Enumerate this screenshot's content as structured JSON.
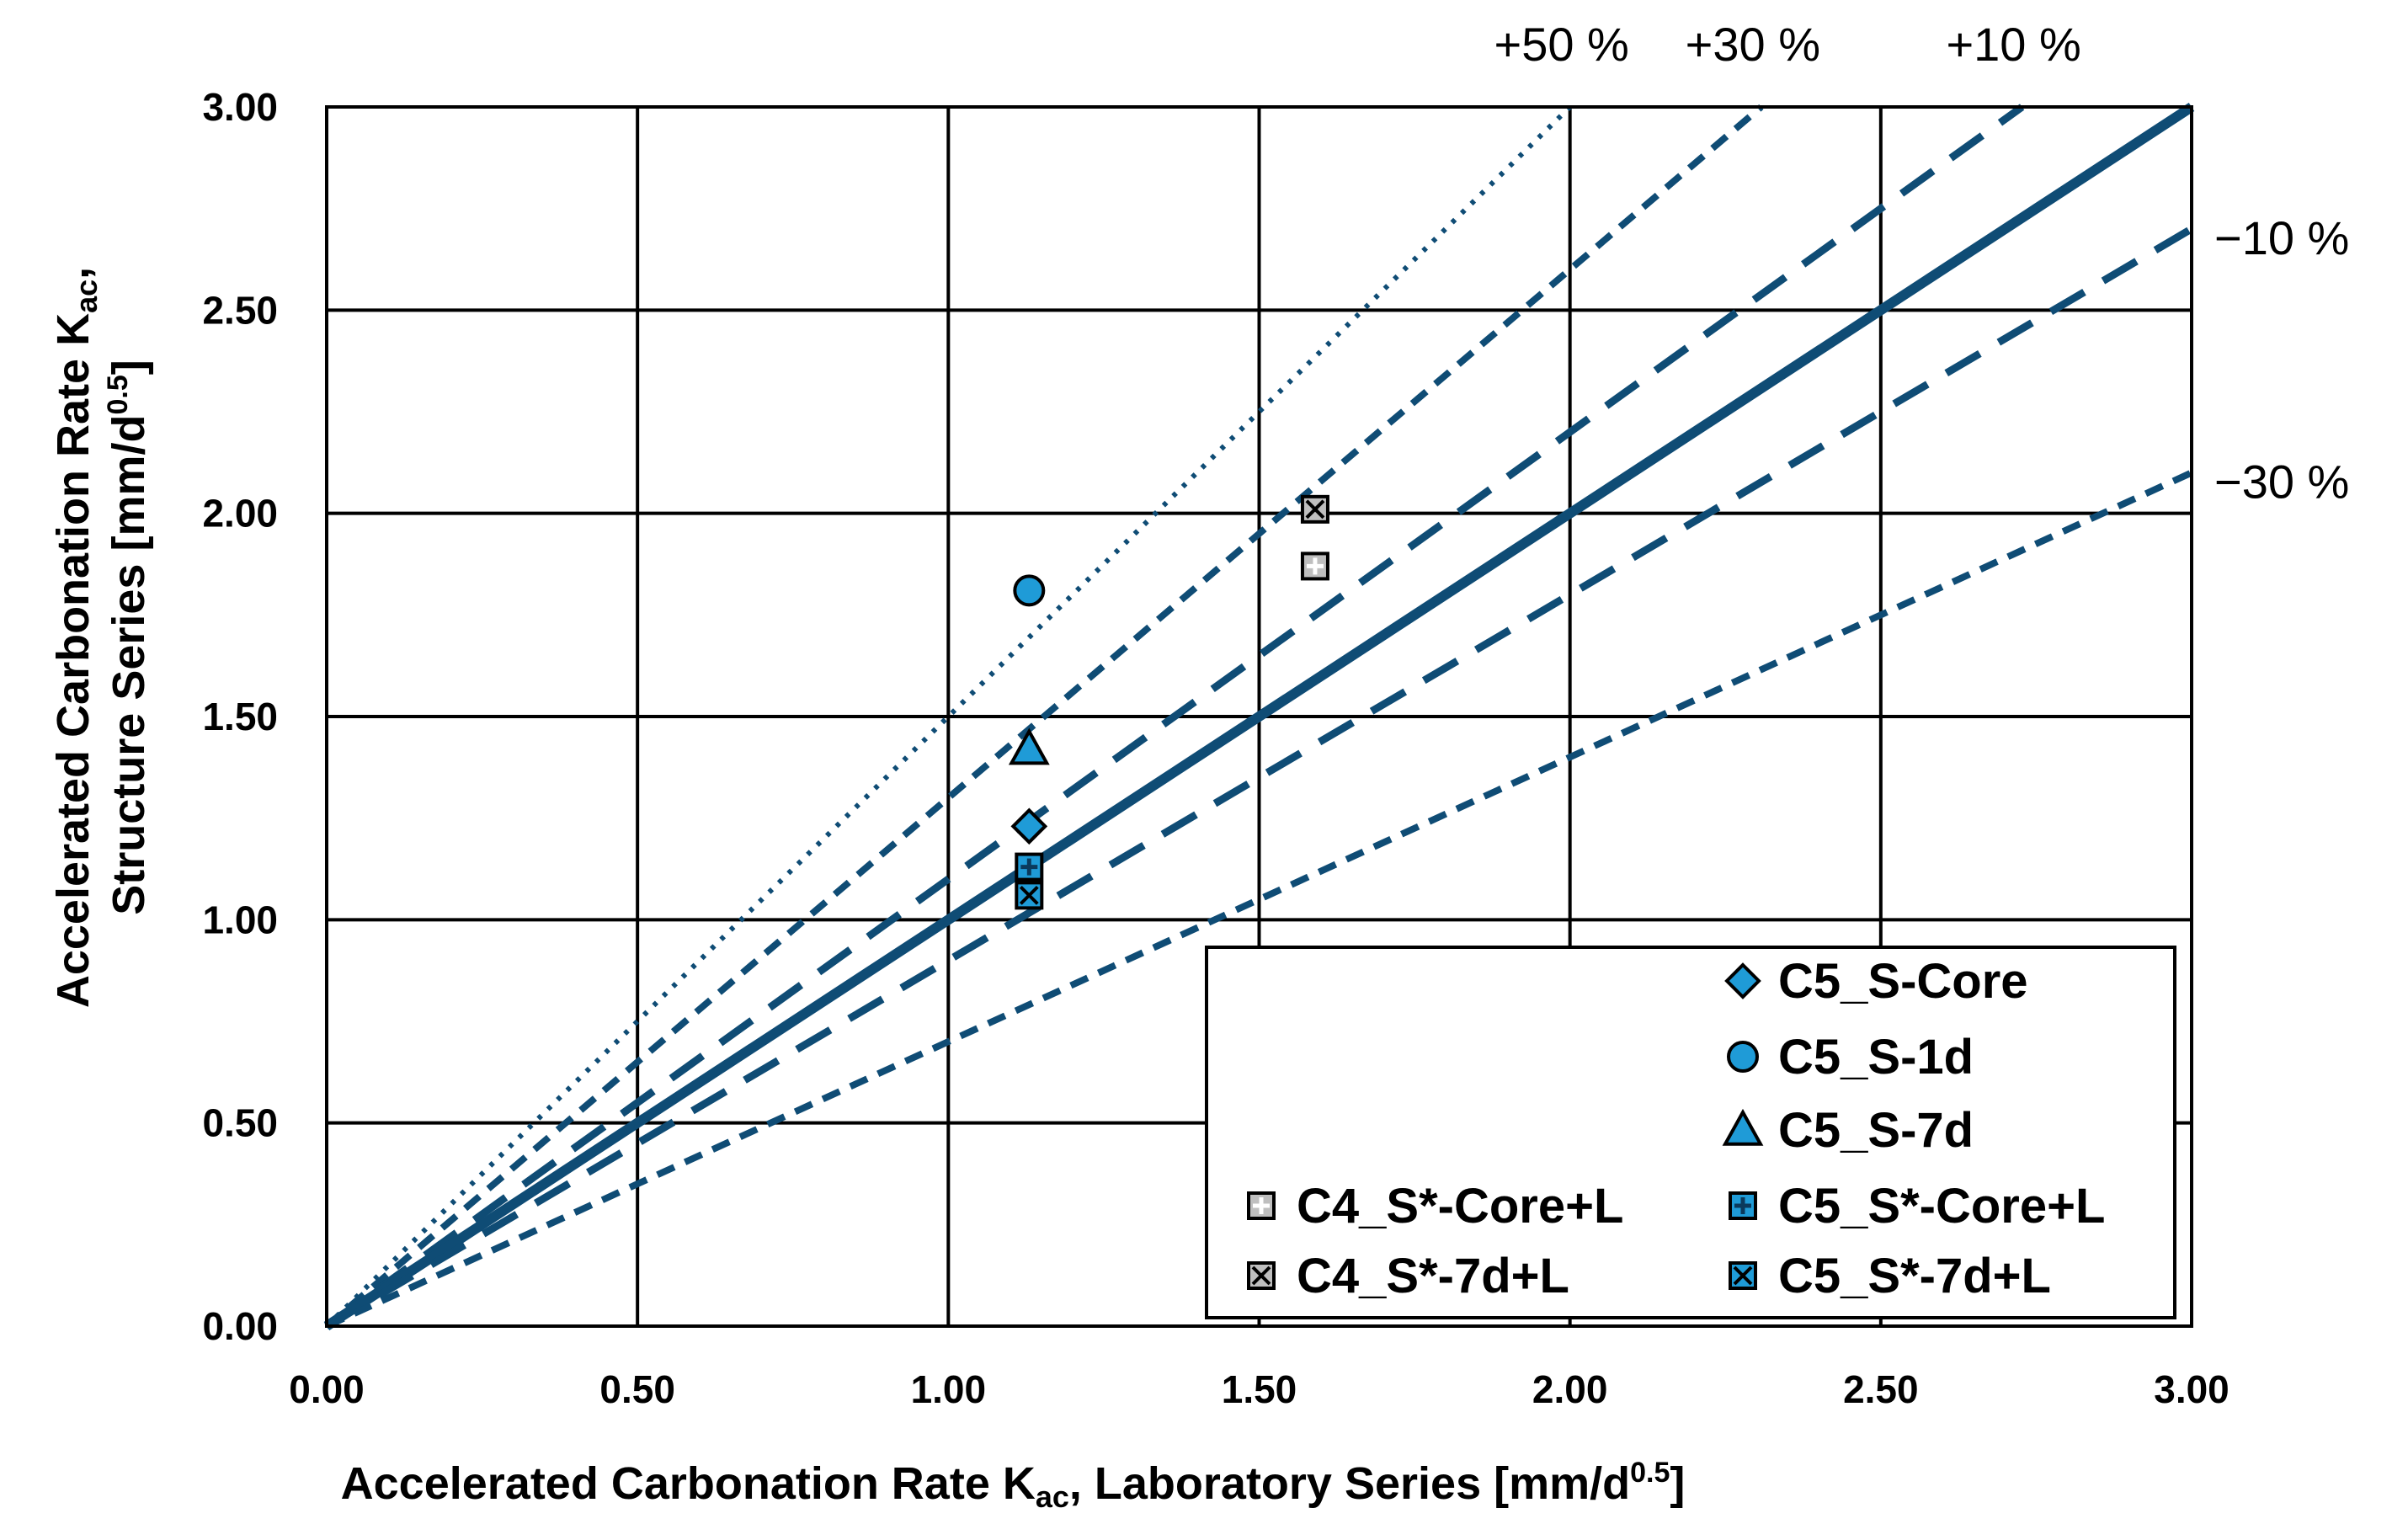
{
  "chart_data": {
    "type": "scatter",
    "title": "",
    "xlabel": {
      "prefix": "Accelerated Carbonation Rate K",
      "sub": "ac",
      "middle": ", Laboratory Series [mm/d",
      "sup": "0.5",
      "suffix": "]"
    },
    "ylabel": {
      "line1_prefix": "Accelerated Carbonation Rate K",
      "line1_sub": "ac",
      "line1_suffix": ",",
      "line2_prefix": "Structure Series [mm/d",
      "line2_sup": "0.5",
      "line2_suffix": "]"
    },
    "xlim": [
      0,
      3
    ],
    "ylim": [
      0,
      3
    ],
    "x_ticks": [
      "0.00",
      "0.50",
      "1.00",
      "1.50",
      "2.00",
      "2.50",
      "3.00"
    ],
    "y_ticks": [
      "0.00",
      "0.50",
      "1.00",
      "1.50",
      "2.00",
      "2.50",
      "3.00"
    ],
    "grid": true,
    "reference_lines": [
      {
        "label": "+50 %",
        "slope": 1.5,
        "style": "dotted"
      },
      {
        "label": "+30 %",
        "slope": 1.3,
        "style": "dashed"
      },
      {
        "label": "+10 %",
        "slope": 1.1,
        "style": "dashed-long"
      },
      {
        "label": "",
        "slope": 1.0,
        "style": "solid"
      },
      {
        "label": "−10 %",
        "slope": 0.9,
        "style": "dashed-long"
      },
      {
        "label": "−30 %",
        "slope": 0.7,
        "style": "dashed"
      }
    ],
    "series": [
      {
        "name": "C5_S-Core",
        "marker": "diamond",
        "color": "#1f9bd7",
        "points": [
          [
            1.13,
            1.23
          ]
        ]
      },
      {
        "name": "C5_S-1d",
        "marker": "circle",
        "color": "#1f9bd7",
        "points": [
          [
            1.13,
            1.81
          ]
        ]
      },
      {
        "name": "C5_S-7d",
        "marker": "triangle",
        "color": "#1f9bd7",
        "points": [
          [
            1.13,
            1.42
          ]
        ]
      },
      {
        "name": "C4_S*-Core+L",
        "marker": "square-plus",
        "color": "#bfbfbf",
        "points": [
          [
            1.59,
            1.87
          ]
        ]
      },
      {
        "name": "C5_S*-Core+L",
        "marker": "square-plus",
        "color": "#1f9bd7",
        "points": [
          [
            1.13,
            1.13
          ]
        ]
      },
      {
        "name": "C4_S*-7d+L",
        "marker": "square-x",
        "color": "#bfbfbf",
        "points": [
          [
            1.59,
            2.01
          ]
        ]
      },
      {
        "name": "C5_S*-7d+L",
        "marker": "square-x",
        "color": "#1f9bd7",
        "points": [
          [
            1.13,
            1.06
          ]
        ]
      }
    ],
    "legend_position": "bottom-right",
    "line_color": "#0f4c75"
  }
}
